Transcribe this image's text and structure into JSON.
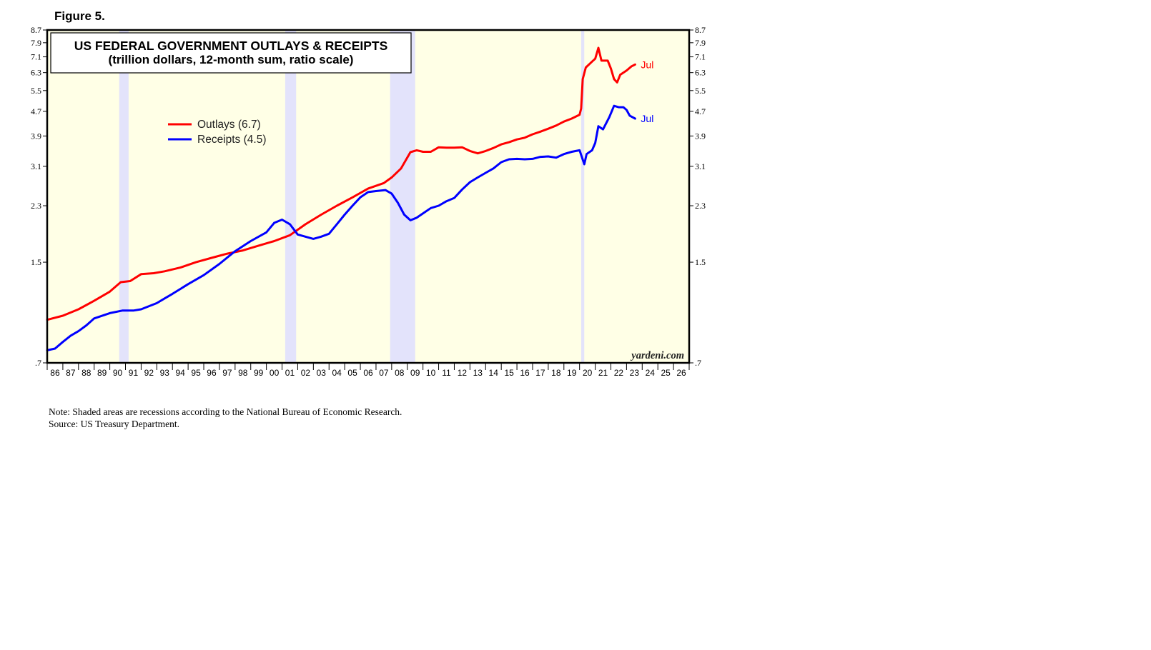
{
  "figure_label": "Figure 5.",
  "notes": {
    "note": "Note: Shaded areas are recessions according to the National Bureau of Economic Research.",
    "source": "Source: US Treasury Department."
  },
  "chart_data": {
    "type": "line",
    "title": "US FEDERAL GOVERNMENT OUTLAYS & RECEIPTS",
    "subtitle": "(trillion dollars, 12-month sum, ratio scale)",
    "watermark": "yardeni.com",
    "y_scale": "log",
    "ylim": [
      0.7,
      8.7
    ],
    "y_ticks": [
      0.7,
      1.5,
      2.3,
      3.1,
      3.9,
      4.7,
      5.5,
      6.3,
      7.1,
      7.9,
      8.7
    ],
    "y_tick_labels": [
      ".7",
      "1.5",
      "2.3",
      "3.1",
      "3.9",
      "4.7",
      "5.5",
      "6.3",
      "7.1",
      "7.9",
      "8.7"
    ],
    "xlim": [
      1986.0,
      2027.0
    ],
    "x_tick_labels": [
      "86",
      "87",
      "88",
      "89",
      "90",
      "91",
      "92",
      "93",
      "94",
      "95",
      "96",
      "97",
      "98",
      "99",
      "00",
      "01",
      "02",
      "03",
      "04",
      "05",
      "06",
      "07",
      "08",
      "09",
      "10",
      "11",
      "12",
      "13",
      "14",
      "15",
      "16",
      "17",
      "18",
      "19",
      "20",
      "21",
      "22",
      "23",
      "24",
      "25",
      "26"
    ],
    "background_color": "#ffffe6",
    "recession_color": "#e3e3fb",
    "recessions": [
      [
        1990.6,
        1991.2
      ],
      [
        2001.2,
        2001.9
      ],
      [
        2007.9,
        2009.5
      ],
      [
        2020.1,
        2020.3
      ]
    ],
    "legend_position": "upper-left",
    "grid": false,
    "series": [
      {
        "name": "Outlays (6.7)",
        "end_label": "Jul",
        "color": "#ff0000",
        "points": [
          [
            1986.0,
            0.97
          ],
          [
            1987.0,
            1.0
          ],
          [
            1988.0,
            1.05
          ],
          [
            1989.0,
            1.12
          ],
          [
            1990.0,
            1.2
          ],
          [
            1990.7,
            1.29
          ],
          [
            1991.3,
            1.3
          ],
          [
            1992.0,
            1.37
          ],
          [
            1992.8,
            1.38
          ],
          [
            1993.5,
            1.4
          ],
          [
            1994.5,
            1.44
          ],
          [
            1995.5,
            1.5
          ],
          [
            1996.5,
            1.55
          ],
          [
            1997.5,
            1.6
          ],
          [
            1998.5,
            1.64
          ],
          [
            1999.5,
            1.7
          ],
          [
            2000.5,
            1.76
          ],
          [
            2001.5,
            1.84
          ],
          [
            2002.5,
            2.0
          ],
          [
            2003.5,
            2.15
          ],
          [
            2004.5,
            2.3
          ],
          [
            2005.5,
            2.45
          ],
          [
            2006.5,
            2.62
          ],
          [
            2007.5,
            2.73
          ],
          [
            2008.0,
            2.85
          ],
          [
            2008.6,
            3.05
          ],
          [
            2009.2,
            3.45
          ],
          [
            2009.6,
            3.5
          ],
          [
            2010.0,
            3.46
          ],
          [
            2010.5,
            3.46
          ],
          [
            2011.0,
            3.58
          ],
          [
            2011.5,
            3.57
          ],
          [
            2012.0,
            3.57
          ],
          [
            2012.5,
            3.58
          ],
          [
            2013.0,
            3.48
          ],
          [
            2013.5,
            3.42
          ],
          [
            2014.0,
            3.48
          ],
          [
            2014.5,
            3.56
          ],
          [
            2015.0,
            3.66
          ],
          [
            2015.5,
            3.72
          ],
          [
            2016.0,
            3.8
          ],
          [
            2016.5,
            3.85
          ],
          [
            2017.0,
            3.95
          ],
          [
            2017.5,
            4.03
          ],
          [
            2018.0,
            4.12
          ],
          [
            2018.5,
            4.22
          ],
          [
            2019.0,
            4.35
          ],
          [
            2019.5,
            4.45
          ],
          [
            2020.0,
            4.58
          ],
          [
            2020.1,
            4.8
          ],
          [
            2020.2,
            6.0
          ],
          [
            2020.4,
            6.55
          ],
          [
            2020.8,
            6.85
          ],
          [
            2021.0,
            7.0
          ],
          [
            2021.2,
            7.6
          ],
          [
            2021.4,
            6.9
          ],
          [
            2021.8,
            6.9
          ],
          [
            2022.0,
            6.5
          ],
          [
            2022.2,
            6.0
          ],
          [
            2022.4,
            5.85
          ],
          [
            2022.6,
            6.2
          ],
          [
            2023.0,
            6.4
          ],
          [
            2023.3,
            6.6
          ],
          [
            2023.55,
            6.7
          ]
        ]
      },
      {
        "name": "Receipts (4.5)",
        "end_label": "Jul",
        "color": "#0000ff",
        "points": [
          [
            1986.0,
            0.77
          ],
          [
            1986.5,
            0.78
          ],
          [
            1987.0,
            0.82
          ],
          [
            1987.5,
            0.86
          ],
          [
            1988.0,
            0.89
          ],
          [
            1988.5,
            0.93
          ],
          [
            1989.0,
            0.98
          ],
          [
            1990.0,
            1.02
          ],
          [
            1990.8,
            1.04
          ],
          [
            1991.5,
            1.04
          ],
          [
            1992.0,
            1.05
          ],
          [
            1993.0,
            1.1
          ],
          [
            1993.5,
            1.14
          ],
          [
            1994.0,
            1.18
          ],
          [
            1995.0,
            1.27
          ],
          [
            1996.0,
            1.36
          ],
          [
            1997.0,
            1.48
          ],
          [
            1998.0,
            1.63
          ],
          [
            1999.0,
            1.76
          ],
          [
            2000.0,
            1.88
          ],
          [
            2000.5,
            2.02
          ],
          [
            2001.0,
            2.07
          ],
          [
            2001.5,
            2.0
          ],
          [
            2002.0,
            1.85
          ],
          [
            2003.0,
            1.79
          ],
          [
            2003.5,
            1.82
          ],
          [
            2004.0,
            1.86
          ],
          [
            2004.5,
            2.0
          ],
          [
            2005.0,
            2.15
          ],
          [
            2005.5,
            2.3
          ],
          [
            2006.0,
            2.45
          ],
          [
            2006.5,
            2.55
          ],
          [
            2007.0,
            2.57
          ],
          [
            2007.6,
            2.59
          ],
          [
            2008.0,
            2.52
          ],
          [
            2008.4,
            2.35
          ],
          [
            2008.8,
            2.15
          ],
          [
            2009.2,
            2.06
          ],
          [
            2009.6,
            2.1
          ],
          [
            2010.0,
            2.17
          ],
          [
            2010.5,
            2.26
          ],
          [
            2011.0,
            2.3
          ],
          [
            2011.5,
            2.38
          ],
          [
            2012.0,
            2.44
          ],
          [
            2012.5,
            2.6
          ],
          [
            2013.0,
            2.75
          ],
          [
            2013.5,
            2.85
          ],
          [
            2014.0,
            2.95
          ],
          [
            2014.5,
            3.05
          ],
          [
            2015.0,
            3.2
          ],
          [
            2015.5,
            3.27
          ],
          [
            2016.0,
            3.28
          ],
          [
            2016.5,
            3.27
          ],
          [
            2017.0,
            3.28
          ],
          [
            2017.5,
            3.33
          ],
          [
            2018.0,
            3.34
          ],
          [
            2018.5,
            3.31
          ],
          [
            2019.0,
            3.4
          ],
          [
            2019.5,
            3.46
          ],
          [
            2020.0,
            3.5
          ],
          [
            2020.3,
            3.15
          ],
          [
            2020.45,
            3.4
          ],
          [
            2020.8,
            3.5
          ],
          [
            2021.0,
            3.7
          ],
          [
            2021.2,
            4.2
          ],
          [
            2021.5,
            4.1
          ],
          [
            2021.9,
            4.5
          ],
          [
            2022.2,
            4.9
          ],
          [
            2022.5,
            4.85
          ],
          [
            2022.8,
            4.85
          ],
          [
            2023.0,
            4.75
          ],
          [
            2023.2,
            4.55
          ],
          [
            2023.55,
            4.45
          ]
        ]
      }
    ]
  }
}
